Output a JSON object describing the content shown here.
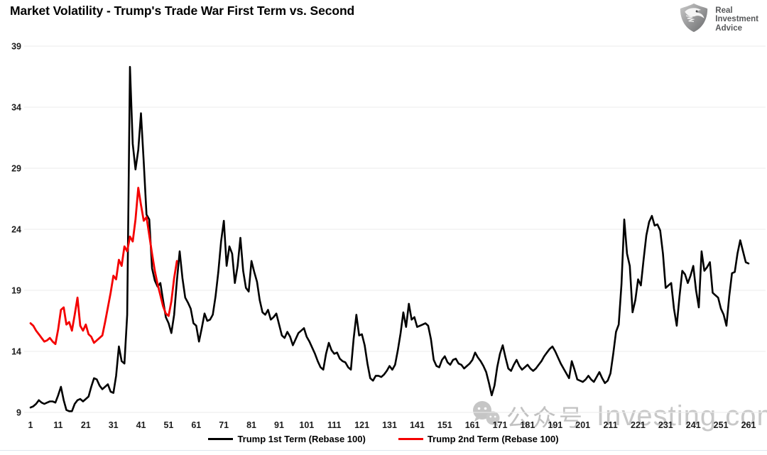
{
  "title": "Market Volatility - Trump's Trade War First Term vs. Second",
  "logo": {
    "icon": "eagle-shield-logo",
    "line1": "Real",
    "line2": "Investment",
    "line3": "Advice"
  },
  "watermark": {
    "icon": "wechat-icon",
    "cn_text": "公众号",
    "site_text": "Investing.com"
  },
  "legend": [
    {
      "label": "Trump 1st Term (Rebase 100)",
      "color": "#000000"
    },
    {
      "label": "Trump 2nd Term (Rebase 100)",
      "color": "#f40000"
    }
  ],
  "chart_data": {
    "type": "line",
    "title": "Market Volatility - Trump's Trade War First Term vs. Second",
    "xlabel": "",
    "ylabel": "",
    "xlim": [
      1,
      261
    ],
    "ylim": [
      9,
      39
    ],
    "x_ticks": [
      1,
      11,
      21,
      31,
      41,
      51,
      61,
      71,
      81,
      91,
      101,
      111,
      121,
      131,
      141,
      151,
      161,
      171,
      181,
      191,
      201,
      211,
      221,
      231,
      241,
      251,
      261
    ],
    "y_ticks": [
      9,
      14,
      19,
      24,
      29,
      34,
      39
    ],
    "grid": "horizontal-light",
    "legend_position": "bottom",
    "x_start": 1,
    "series": [
      {
        "name": "Trump 1st Term (Rebase 100)",
        "color": "#000000",
        "width": 2.6,
        "values": [
          9.4,
          9.5,
          9.7,
          10.0,
          9.8,
          9.7,
          9.8,
          9.9,
          9.9,
          9.8,
          10.4,
          11.1,
          10.0,
          9.2,
          9.1,
          9.1,
          9.7,
          10.0,
          10.1,
          9.9,
          10.1,
          10.3,
          11.1,
          11.8,
          11.7,
          11.2,
          10.9,
          11.1,
          11.3,
          10.7,
          10.6,
          12.0,
          14.4,
          13.2,
          13.0,
          17.0,
          37.3,
          31.0,
          28.9,
          30.5,
          33.5,
          29.5,
          25.2,
          24.8,
          20.8,
          19.8,
          19.3,
          19.6,
          18.2,
          16.8,
          16.3,
          15.5,
          17.0,
          19.8,
          22.2,
          20.0,
          18.4,
          18.0,
          17.5,
          16.3,
          16.1,
          14.8,
          15.9,
          17.1,
          16.5,
          16.6,
          17.0,
          18.5,
          20.5,
          23.0,
          24.7,
          21.0,
          22.6,
          22.0,
          19.6,
          21.0,
          23.3,
          20.6,
          19.2,
          18.9,
          21.4,
          20.5,
          19.7,
          18.2,
          17.2,
          17.0,
          17.4,
          16.6,
          16.8,
          17.1,
          16.2,
          15.3,
          15.1,
          15.6,
          15.2,
          14.5,
          15.0,
          15.5,
          15.7,
          15.9,
          15.2,
          14.8,
          14.3,
          13.8,
          13.2,
          12.7,
          12.5,
          13.8,
          14.7,
          14.1,
          13.8,
          13.9,
          13.4,
          13.2,
          13.1,
          12.7,
          12.5,
          15.0,
          17.0,
          15.3,
          15.4,
          14.5,
          13.0,
          11.8,
          11.6,
          12.0,
          12.0,
          11.9,
          12.1,
          12.4,
          12.8,
          12.5,
          12.9,
          14.1,
          15.5,
          17.2,
          16.0,
          17.9,
          16.6,
          16.8,
          16.0,
          16.1,
          16.2,
          16.3,
          16.1,
          15.0,
          13.3,
          12.8,
          12.7,
          13.3,
          13.6,
          13.1,
          12.9,
          13.3,
          13.4,
          13.0,
          12.9,
          12.6,
          12.8,
          13.0,
          13.3,
          13.9,
          13.5,
          13.2,
          12.8,
          12.3,
          11.4,
          10.4,
          11.2,
          12.7,
          13.8,
          14.5,
          13.5,
          12.6,
          12.4,
          12.9,
          13.3,
          12.8,
          12.5,
          12.7,
          12.9,
          12.6,
          12.4,
          12.6,
          12.9,
          13.2,
          13.6,
          13.9,
          14.2,
          14.4,
          14.0,
          13.5,
          13.0,
          12.6,
          12.2,
          11.8,
          13.2,
          12.5,
          11.7,
          11.6,
          11.5,
          11.7,
          12.0,
          11.7,
          11.5,
          11.9,
          12.3,
          11.8,
          11.4,
          11.6,
          12.2,
          13.8,
          15.6,
          16.2,
          19.5,
          24.8,
          22.0,
          21.0,
          17.2,
          18.2,
          19.9,
          19.4,
          21.5,
          23.5,
          24.6,
          25.1,
          24.3,
          24.4,
          23.9,
          22.0,
          19.2,
          19.4,
          19.6,
          17.5,
          16.1,
          18.5,
          20.6,
          20.3,
          19.6,
          20.2,
          21.0,
          19.0,
          17.6,
          22.2,
          20.6,
          20.9,
          21.3,
          18.8,
          18.6,
          18.4,
          17.5,
          17.0,
          16.1,
          18.5,
          20.4,
          20.5,
          22.0,
          23.1,
          22.2,
          21.3,
          21.2
        ]
      },
      {
        "name": "Trump 2nd Term (Rebase 100)",
        "color": "#f40000",
        "width": 2.8,
        "values": [
          16.3,
          16.1,
          15.7,
          15.4,
          15.1,
          14.8,
          14.9,
          15.1,
          14.8,
          14.6,
          15.8,
          17.4,
          17.6,
          16.2,
          16.4,
          15.7,
          17.0,
          18.4,
          16.1,
          15.7,
          16.2,
          15.4,
          15.2,
          14.7,
          14.9,
          15.1,
          15.3,
          16.4,
          17.6,
          18.8,
          20.2,
          19.9,
          21.5,
          21.0,
          22.6,
          22.2,
          23.4,
          23.0,
          24.8,
          27.4,
          26.0,
          24.7,
          25.0,
          23.5,
          22.0,
          20.6,
          19.5,
          18.6,
          17.7,
          17.1,
          16.9,
          18.1,
          20.0,
          21.4
        ]
      }
    ]
  }
}
